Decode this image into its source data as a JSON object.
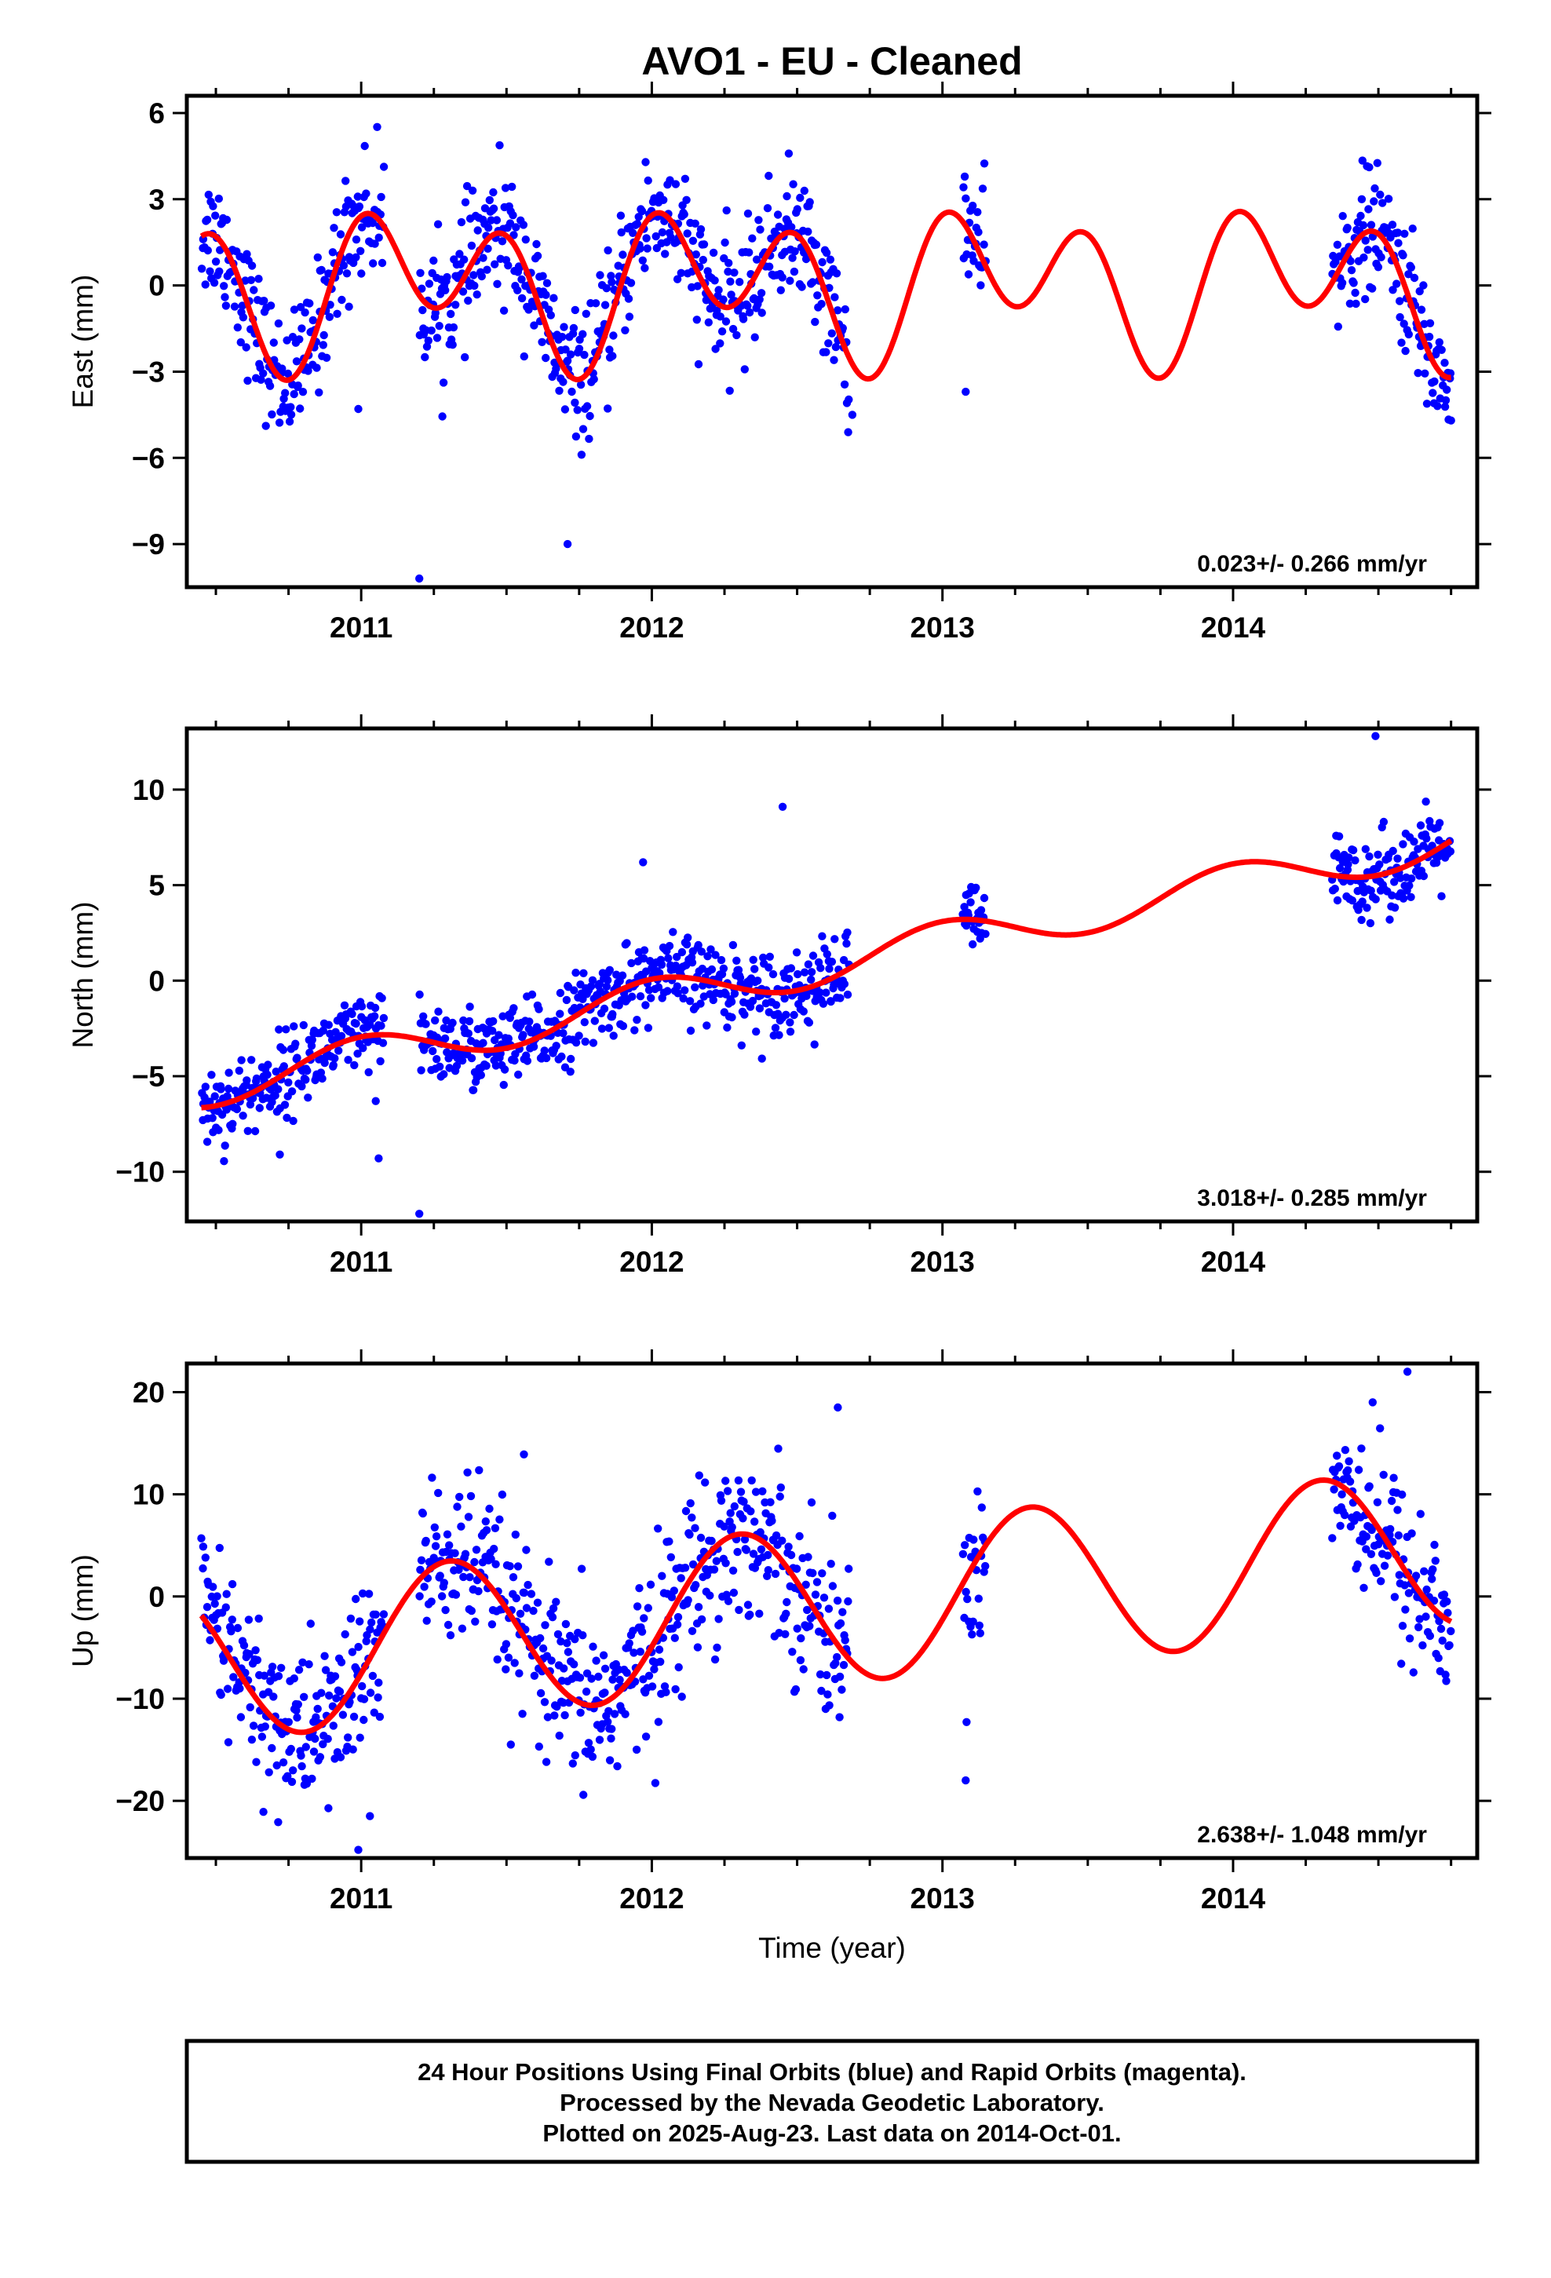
{
  "title": "AVO1  - EU - Cleaned",
  "xlabel": "Time (year)",
  "footer": {
    "lines": [
      "24 Hour Positions Using Final Orbits (blue) and Rapid Orbits (magenta).",
      "Processed by the Nevada Geodetic Laboratory.",
      "Plotted on 2025-Aug-23. Last data on 2014-Oct-01."
    ]
  },
  "colors": {
    "data": "#0000ff",
    "model": "#ff0000",
    "axes": "#000000"
  },
  "chart_data": [
    {
      "type": "scatter",
      "ylabel": "East (mm)",
      "rate_label": "0.023+/- 0.266 mm/yr",
      "xlim": [
        2010.4,
        2014.84
      ],
      "ylim": [
        -10.5,
        6.6
      ],
      "xticks": [
        2011,
        2012,
        2013,
        2014
      ],
      "xtick_labels": [
        "2011",
        "2012",
        "2013",
        "2014"
      ],
      "yticks": [
        6,
        3,
        0,
        -3,
        -6,
        -9
      ],
      "ytick_labels": [
        "6",
        "3",
        "0",
        "−3",
        "−6",
        "−9"
      ],
      "data_spans": [
        [
          2010.45,
          2010.95
        ],
        [
          2010.95,
          2011.08
        ],
        [
          2011.2,
          2011.73
        ],
        [
          2011.73,
          2012.05
        ],
        [
          2012.05,
          2012.68
        ],
        [
          2013.07,
          2013.15
        ],
        [
          2014.34,
          2014.75
        ]
      ],
      "outliers": [
        [
          2011.2,
          -10.2
        ],
        [
          2011.71,
          -9.0
        ],
        [
          2010.99,
          -4.3
        ],
        [
          2012.69,
          -4.5
        ],
        [
          2013.08,
          -3.7
        ],
        [
          2014.75,
          -4.7
        ]
      ],
      "model": {
        "t0": 2010.45,
        "t1": 2014.75,
        "offset": 0.0,
        "trend": 0.023,
        "annual_cos": 0.35,
        "annual_sin": 1.25,
        "semiannual_cos": 2.05,
        "semiannual_sin": 0.0
      },
      "scatter_noise": 1.1
    },
    {
      "type": "scatter",
      "ylabel": "North (mm)",
      "rate_label": "3.018+/- 0.285 mm/yr",
      "xlim": [
        2010.4,
        2014.84
      ],
      "ylim": [
        -12.6,
        13.2
      ],
      "xticks": [
        2011,
        2012,
        2013,
        2014
      ],
      "xtick_labels": [
        "2011",
        "2012",
        "2013",
        "2014"
      ],
      "yticks": [
        10,
        5,
        0,
        -5,
        -10
      ],
      "ytick_labels": [
        "10",
        "5",
        "0",
        "−5",
        "−10"
      ],
      "data_spans": [
        [
          2010.45,
          2010.95
        ],
        [
          2010.95,
          2011.08
        ],
        [
          2011.2,
          2011.73
        ],
        [
          2011.73,
          2012.05
        ],
        [
          2012.05,
          2012.68
        ],
        [
          2013.07,
          2013.15
        ],
        [
          2014.34,
          2014.75
        ]
      ],
      "outliers": [
        [
          2011.2,
          -12.2
        ],
        [
          2011.06,
          -9.3
        ],
        [
          2010.72,
          -9.1
        ],
        [
          2011.05,
          -6.3
        ],
        [
          2012.45,
          9.1
        ],
        [
          2014.49,
          12.8
        ],
        [
          2011.97,
          6.2
        ]
      ],
      "model": {
        "t0": 2010.45,
        "t1": 2014.75,
        "offset": -5.65,
        "trend": 3.018,
        "annual_cos": 1.05,
        "annual_sin": 0.0,
        "semiannual_cos": 0.0,
        "semiannual_sin": 0.0
      },
      "scatter_noise": 1.05
    },
    {
      "type": "scatter",
      "ylabel": "Up (mm)",
      "rate_label": "2.638+/- 1.048 mm/yr",
      "xlim": [
        2010.4,
        2014.84
      ],
      "ylim": [
        -25.6,
        22.8
      ],
      "xticks": [
        2011,
        2012,
        2013,
        2014
      ],
      "xtick_labels": [
        "2011",
        "2012",
        "2013",
        "2014"
      ],
      "yticks": [
        20,
        10,
        0,
        -10,
        -20
      ],
      "ytick_labels": [
        "20",
        "10",
        "0",
        "−10",
        "−20"
      ],
      "data_spans": [
        [
          2010.45,
          2010.95
        ],
        [
          2010.95,
          2011.08
        ],
        [
          2011.2,
          2011.73
        ],
        [
          2011.73,
          2012.05
        ],
        [
          2012.05,
          2012.68
        ],
        [
          2013.07,
          2013.15
        ],
        [
          2014.34,
          2014.75
        ]
      ],
      "outliers": [
        [
          2010.99,
          -24.8
        ],
        [
          2011.03,
          -21.5
        ],
        [
          2013.08,
          -18.0
        ],
        [
          2014.6,
          22.0
        ],
        [
          2011.56,
          13.9
        ],
        [
          2012.64,
          18.5
        ]
      ],
      "model": {
        "t0": 2010.45,
        "t1": 2014.75,
        "offset": -6.5,
        "trend": 2.638,
        "annual_cos": -2.5,
        "annual_sin": 7.3,
        "semiannual_cos": 0.0,
        "semiannual_sin": 0.0
      },
      "scatter_noise": 4.2
    }
  ]
}
